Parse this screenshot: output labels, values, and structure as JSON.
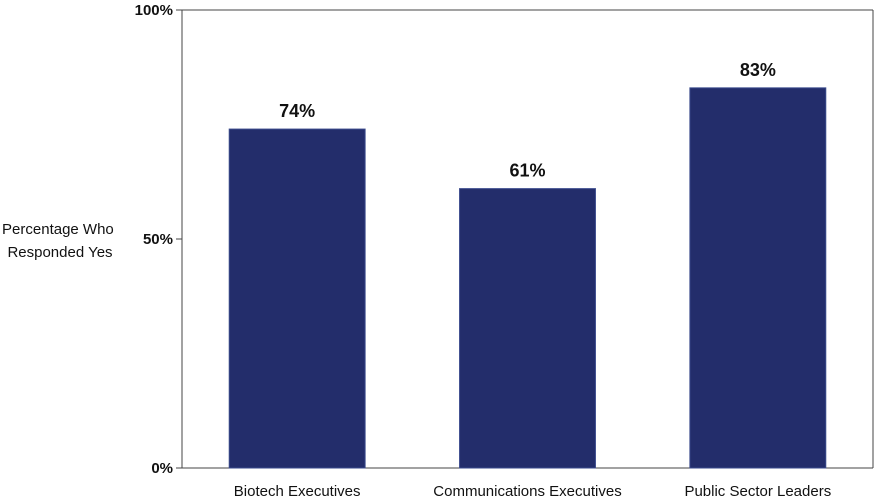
{
  "chart_data": {
    "type": "bar",
    "categories": [
      "Biotech Executives",
      "Communications Executives",
      "Public Sector Leaders"
    ],
    "values": [
      74,
      61,
      83
    ],
    "data_labels": [
      "74%",
      "61%",
      "83%"
    ],
    "title": "",
    "xlabel": "",
    "ylabel_lines": [
      "Percentage Who",
      "Responded Yes"
    ],
    "ylim": [
      0,
      100
    ],
    "yticks": [
      0,
      50,
      100
    ],
    "ytick_labels": [
      "0%",
      "50%",
      "100%"
    ],
    "grid": false,
    "legend": "none",
    "colors": {
      "bar": "#232d6b",
      "bar_edge": "#3a4a8c",
      "axis": "#444444"
    }
  }
}
